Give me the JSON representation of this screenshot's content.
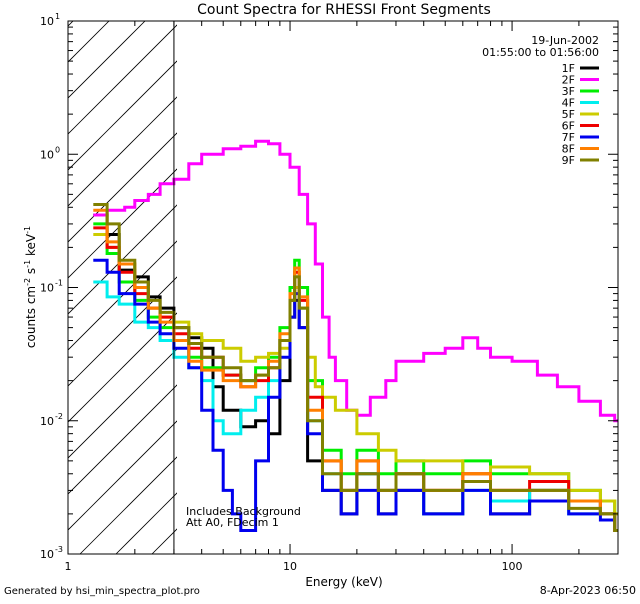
{
  "chart_data": {
    "type": "line",
    "title": "Count Spectra for RHESSI Front Segments",
    "xlabel": "Energy (keV)",
    "ylabel": "counts cm^-2 s^-1 keV^-1",
    "x_scale": "log",
    "y_scale": "log",
    "xlim": [
      1,
      300
    ],
    "ylim": [
      0.001,
      10
    ],
    "x_ticks": [
      {
        "value": 1,
        "label": "1"
      },
      {
        "value": 10,
        "label": "10"
      },
      {
        "value": 100,
        "label": "100"
      }
    ],
    "y_ticks": [
      {
        "value": 10,
        "base": "10",
        "exp": "1"
      },
      {
        "value": 1,
        "base": "10",
        "exp": "0"
      },
      {
        "value": 0.1,
        "base": "10",
        "exp": "-1"
      },
      {
        "value": 0.01,
        "base": "10",
        "exp": "-2"
      },
      {
        "value": 0.001,
        "base": "10",
        "exp": "-3"
      }
    ],
    "shaded_region": {
      "x_from": 1,
      "x_to": 3,
      "pattern": "diagonal-hatch"
    },
    "legend": {
      "position": "top-right",
      "date": "19-Jun-2002",
      "time_range": "01:55:00 to 01:56:00",
      "entries": [
        {
          "name": "1F",
          "color": "#000000"
        },
        {
          "name": "2F",
          "color": "#ff00ff"
        },
        {
          "name": "3F",
          "color": "#00ee00"
        },
        {
          "name": "4F",
          "color": "#00eeee"
        },
        {
          "name": "5F",
          "color": "#cccc00"
        },
        {
          "name": "6F",
          "color": "#ee0000"
        },
        {
          "name": "7F",
          "color": "#0000ee"
        },
        {
          "name": "8F",
          "color": "#ff7f00"
        },
        {
          "name": "9F",
          "color": "#808000"
        }
      ]
    },
    "annotations": [
      "Includes Background",
      "Att A0, FDecim 1"
    ],
    "series": [
      {
        "name": "1F",
        "color": "#000000",
        "points": [
          [
            1.3,
            0.35
          ],
          [
            1.5,
            0.25
          ],
          [
            1.7,
            0.135
          ],
          [
            2.0,
            0.12
          ],
          [
            2.3,
            0.085
          ],
          [
            2.6,
            0.07
          ],
          [
            3.0,
            0.05
          ],
          [
            3.5,
            0.042
          ],
          [
            4.0,
            0.035
          ],
          [
            4.5,
            0.018
          ],
          [
            5.0,
            0.012
          ],
          [
            6.0,
            0.009
          ],
          [
            7.0,
            0.01
          ],
          [
            8.0,
            0.008
          ],
          [
            9.0,
            0.02
          ],
          [
            10.0,
            0.06
          ],
          [
            10.5,
            0.08
          ],
          [
            11.0,
            0.05
          ],
          [
            12.0,
            0.005
          ],
          [
            14,
            0.003
          ],
          [
            17,
            0.002
          ],
          [
            20,
            0.004
          ],
          [
            25,
            0.002
          ],
          [
            30,
            0.003
          ],
          [
            40,
            0.002
          ],
          [
            60,
            0.0035
          ],
          [
            80,
            0.002
          ],
          [
            120,
            0.003
          ],
          [
            180,
            0.0025
          ],
          [
            250,
            0.002
          ],
          [
            290,
            0.0015
          ]
        ]
      },
      {
        "name": "2F",
        "color": "#ff00ff",
        "points": [
          [
            1.3,
            0.35
          ],
          [
            1.5,
            0.38
          ],
          [
            1.8,
            0.4
          ],
          [
            2.0,
            0.45
          ],
          [
            2.3,
            0.5
          ],
          [
            2.6,
            0.6
          ],
          [
            3.0,
            0.65
          ],
          [
            3.5,
            0.85
          ],
          [
            4.0,
            1.0
          ],
          [
            5.0,
            1.1
          ],
          [
            6.0,
            1.15
          ],
          [
            7.0,
            1.25
          ],
          [
            8.0,
            1.2
          ],
          [
            9.0,
            1.0
          ],
          [
            10.0,
            0.8
          ],
          [
            11.0,
            0.5
          ],
          [
            12.0,
            0.3
          ],
          [
            13.0,
            0.15
          ],
          [
            14.0,
            0.06
          ],
          [
            15.0,
            0.03
          ],
          [
            16.0,
            0.02
          ],
          [
            18.0,
            0.012
          ],
          [
            20.0,
            0.011
          ],
          [
            23,
            0.015
          ],
          [
            27,
            0.02
          ],
          [
            30,
            0.028
          ],
          [
            40,
            0.032
          ],
          [
            50,
            0.035
          ],
          [
            60,
            0.042
          ],
          [
            70,
            0.035
          ],
          [
            80,
            0.03
          ],
          [
            100,
            0.028
          ],
          [
            130,
            0.022
          ],
          [
            160,
            0.018
          ],
          [
            200,
            0.014
          ],
          [
            250,
            0.011
          ],
          [
            290,
            0.01
          ]
        ]
      },
      {
        "name": "3F",
        "color": "#00ee00",
        "points": [
          [
            1.3,
            0.3
          ],
          [
            1.5,
            0.18
          ],
          [
            1.7,
            0.11
          ],
          [
            2.0,
            0.08
          ],
          [
            2.3,
            0.06
          ],
          [
            2.6,
            0.05
          ],
          [
            3.0,
            0.04
          ],
          [
            3.5,
            0.03
          ],
          [
            4.0,
            0.025
          ],
          [
            5.0,
            0.022
          ],
          [
            6.0,
            0.02
          ],
          [
            7.0,
            0.025
          ],
          [
            8.0,
            0.03
          ],
          [
            9.0,
            0.05
          ],
          [
            10.0,
            0.1
          ],
          [
            10.5,
            0.16
          ],
          [
            11.0,
            0.1
          ],
          [
            12.0,
            0.02
          ],
          [
            14,
            0.006
          ],
          [
            17,
            0.004
          ],
          [
            20,
            0.006
          ],
          [
            25,
            0.004
          ],
          [
            30,
            0.005
          ],
          [
            40,
            0.004
          ],
          [
            60,
            0.005
          ],
          [
            80,
            0.004
          ],
          [
            120,
            0.004
          ],
          [
            180,
            0.003
          ],
          [
            250,
            0.0025
          ],
          [
            290,
            0.002
          ]
        ]
      },
      {
        "name": "4F",
        "color": "#00eeee",
        "points": [
          [
            1.3,
            0.11
          ],
          [
            1.5,
            0.085
          ],
          [
            1.7,
            0.075
          ],
          [
            2.0,
            0.055
          ],
          [
            2.3,
            0.05
          ],
          [
            2.6,
            0.04
          ],
          [
            3.0,
            0.03
          ],
          [
            3.5,
            0.025
          ],
          [
            4.0,
            0.02
          ],
          [
            4.5,
            0.01
          ],
          [
            5.0,
            0.008
          ],
          [
            6.0,
            0.012
          ],
          [
            7.0,
            0.015
          ],
          [
            8.0,
            0.02
          ],
          [
            9.0,
            0.04
          ],
          [
            10.0,
            0.08
          ],
          [
            10.5,
            0.12
          ],
          [
            11.0,
            0.07
          ],
          [
            12.0,
            0.01
          ],
          [
            14,
            0.004
          ],
          [
            17,
            0.003
          ],
          [
            20,
            0.004
          ],
          [
            25,
            0.003
          ],
          [
            30,
            0.004
          ],
          [
            40,
            0.002
          ],
          [
            60,
            0.003
          ],
          [
            80,
            0.0025
          ],
          [
            120,
            0.003
          ],
          [
            180,
            0.002
          ],
          [
            250,
            0.002
          ],
          [
            290,
            0.0015
          ]
        ]
      },
      {
        "name": "5F",
        "color": "#cccc00",
        "points": [
          [
            1.3,
            0.25
          ],
          [
            1.5,
            0.2
          ],
          [
            1.7,
            0.15
          ],
          [
            2.0,
            0.1
          ],
          [
            2.3,
            0.07
          ],
          [
            2.6,
            0.06
          ],
          [
            3.0,
            0.055
          ],
          [
            3.5,
            0.045
          ],
          [
            4.0,
            0.04
          ],
          [
            5.0,
            0.035
          ],
          [
            6.0,
            0.028
          ],
          [
            7.0,
            0.03
          ],
          [
            8.0,
            0.032
          ],
          [
            9.0,
            0.035
          ],
          [
            10.0,
            0.06
          ],
          [
            10.5,
            0.1
          ],
          [
            11.0,
            0.07
          ],
          [
            12.0,
            0.03
          ],
          [
            13,
            0.018
          ],
          [
            14,
            0.015
          ],
          [
            16,
            0.012
          ],
          [
            20,
            0.008
          ],
          [
            25,
            0.006
          ],
          [
            30,
            0.005
          ],
          [
            40,
            0.005
          ],
          [
            60,
            0.004
          ],
          [
            80,
            0.0045
          ],
          [
            120,
            0.004
          ],
          [
            180,
            0.003
          ],
          [
            250,
            0.0025
          ],
          [
            290,
            0.002
          ]
        ]
      },
      {
        "name": "6F",
        "color": "#ee0000",
        "points": [
          [
            1.3,
            0.28
          ],
          [
            1.5,
            0.2
          ],
          [
            1.7,
            0.13
          ],
          [
            2.0,
            0.09
          ],
          [
            2.3,
            0.07
          ],
          [
            2.6,
            0.06
          ],
          [
            3.0,
            0.045
          ],
          [
            3.5,
            0.035
          ],
          [
            4.0,
            0.03
          ],
          [
            5.0,
            0.022
          ],
          [
            6.0,
            0.018
          ],
          [
            7.0,
            0.02
          ],
          [
            8.0,
            0.025
          ],
          [
            9.0,
            0.04
          ],
          [
            10.0,
            0.08
          ],
          [
            10.5,
            0.13
          ],
          [
            11.0,
            0.08
          ],
          [
            12.0,
            0.015
          ],
          [
            14,
            0.005
          ],
          [
            17,
            0.003
          ],
          [
            20,
            0.005
          ],
          [
            25,
            0.003
          ],
          [
            30,
            0.004
          ],
          [
            40,
            0.003
          ],
          [
            60,
            0.004
          ],
          [
            80,
            0.003
          ],
          [
            120,
            0.0035
          ],
          [
            180,
            0.0025
          ],
          [
            250,
            0.002
          ],
          [
            290,
            0.0015
          ]
        ]
      },
      {
        "name": "7F",
        "color": "#0000ee",
        "points": [
          [
            1.3,
            0.16
          ],
          [
            1.5,
            0.13
          ],
          [
            1.7,
            0.09
          ],
          [
            2.0,
            0.075
          ],
          [
            2.3,
            0.055
          ],
          [
            2.6,
            0.045
          ],
          [
            3.0,
            0.035
          ],
          [
            3.5,
            0.025
          ],
          [
            4.0,
            0.012
          ],
          [
            4.5,
            0.006
          ],
          [
            5.0,
            0.003
          ],
          [
            5.5,
            0.002
          ],
          [
            6.0,
            0.0015
          ],
          [
            7.0,
            0.005
          ],
          [
            8.0,
            0.015
          ],
          [
            9.0,
            0.03
          ],
          [
            10.0,
            0.06
          ],
          [
            10.5,
            0.09
          ],
          [
            11.0,
            0.05
          ],
          [
            12.0,
            0.008
          ],
          [
            14,
            0.003
          ],
          [
            17,
            0.002
          ],
          [
            20,
            0.003
          ],
          [
            25,
            0.002
          ],
          [
            30,
            0.003
          ],
          [
            40,
            0.002
          ],
          [
            60,
            0.003
          ],
          [
            80,
            0.002
          ],
          [
            120,
            0.0025
          ],
          [
            180,
            0.002
          ],
          [
            250,
            0.0018
          ],
          [
            290,
            0.0015
          ]
        ]
      },
      {
        "name": "8F",
        "color": "#ff7f00",
        "points": [
          [
            1.3,
            0.38
          ],
          [
            1.5,
            0.22
          ],
          [
            1.7,
            0.15
          ],
          [
            2.0,
            0.1
          ],
          [
            2.3,
            0.07
          ],
          [
            2.6,
            0.055
          ],
          [
            3.0,
            0.04
          ],
          [
            3.5,
            0.028
          ],
          [
            4.0,
            0.024
          ],
          [
            5.0,
            0.02
          ],
          [
            6.0,
            0.018
          ],
          [
            7.0,
            0.022
          ],
          [
            8.0,
            0.028
          ],
          [
            9.0,
            0.045
          ],
          [
            10.0,
            0.09
          ],
          [
            10.5,
            0.14
          ],
          [
            11.0,
            0.085
          ],
          [
            12.0,
            0.012
          ],
          [
            14,
            0.005
          ],
          [
            17,
            0.003
          ],
          [
            20,
            0.005
          ],
          [
            25,
            0.003
          ],
          [
            30,
            0.004
          ],
          [
            40,
            0.003
          ],
          [
            60,
            0.004
          ],
          [
            80,
            0.003
          ],
          [
            120,
            0.003
          ],
          [
            180,
            0.0025
          ],
          [
            250,
            0.002
          ],
          [
            290,
            0.0015
          ]
        ]
      },
      {
        "name": "9F",
        "color": "#808000",
        "points": [
          [
            1.3,
            0.42
          ],
          [
            1.5,
            0.3
          ],
          [
            1.7,
            0.16
          ],
          [
            2.0,
            0.11
          ],
          [
            2.3,
            0.08
          ],
          [
            2.6,
            0.065
          ],
          [
            3.0,
            0.05
          ],
          [
            3.5,
            0.038
          ],
          [
            4.0,
            0.03
          ],
          [
            5.0,
            0.025
          ],
          [
            6.0,
            0.02
          ],
          [
            7.0,
            0.022
          ],
          [
            8.0,
            0.025
          ],
          [
            9.0,
            0.04
          ],
          [
            10.0,
            0.08
          ],
          [
            10.5,
            0.12
          ],
          [
            11.0,
            0.07
          ],
          [
            12.0,
            0.01
          ],
          [
            14,
            0.004
          ],
          [
            17,
            0.003
          ],
          [
            20,
            0.004
          ],
          [
            25,
            0.003
          ],
          [
            30,
            0.004
          ],
          [
            40,
            0.003
          ],
          [
            60,
            0.0035
          ],
          [
            80,
            0.003
          ],
          [
            120,
            0.003
          ],
          [
            180,
            0.0022
          ],
          [
            250,
            0.002
          ],
          [
            290,
            0.0015
          ]
        ]
      }
    ]
  },
  "footer": {
    "generated_by": "Generated by hsi_min_spectra_plot.pro",
    "timestamp": "8-Apr-2023 06:50"
  }
}
